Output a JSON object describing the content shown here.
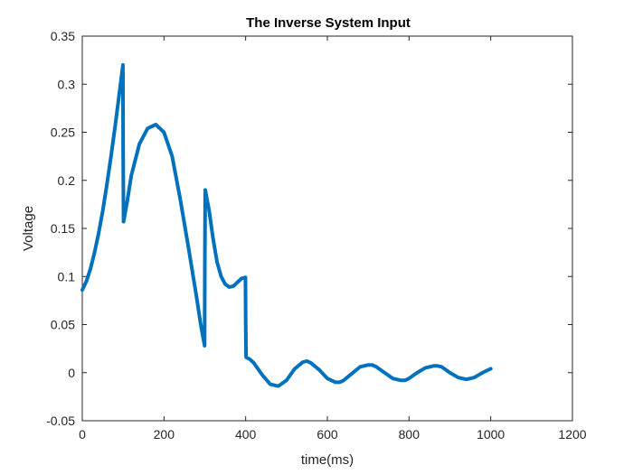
{
  "chart_data": {
    "type": "line",
    "title": "The Inverse System Input",
    "xlabel": "time(ms)",
    "ylabel": "Voltage",
    "xlim": [
      0,
      1200
    ],
    "ylim": [
      -0.05,
      0.35
    ],
    "xticks": [
      0,
      200,
      400,
      600,
      800,
      1000,
      1200
    ],
    "yticks": [
      -0.05,
      0,
      0.05,
      0.1,
      0.15,
      0.2,
      0.25,
      0.3,
      0.35
    ],
    "xtick_labels": [
      "0",
      "200",
      "400",
      "600",
      "800",
      "1000",
      "1200"
    ],
    "ytick_labels": [
      "-0.05",
      "0",
      "0.05",
      "0.1",
      "0.15",
      "0.2",
      "0.25",
      "0.3",
      "0.35"
    ],
    "grid": false,
    "box": true,
    "line_color": "#0072BD",
    "series": [
      {
        "x": [
          0,
          10,
          20,
          30,
          40,
          50,
          60,
          70,
          80,
          90,
          99.5,
          100,
          101,
          110,
          120,
          140,
          160,
          180,
          200,
          220,
          240,
          260,
          280,
          290,
          299.5,
          300,
          301,
          310,
          320,
          330,
          340,
          350,
          360,
          370,
          380,
          390,
          399.5,
          400,
          401,
          410,
          420,
          440,
          460,
          480,
          500,
          520,
          540,
          550,
          560,
          580,
          600,
          620,
          630,
          640,
          660,
          680,
          700,
          710,
          720,
          740,
          760,
          780,
          790,
          800,
          820,
          840,
          860,
          870,
          880,
          900,
          920,
          940,
          950,
          960,
          980,
          1000
        ],
        "y": [
          0.086,
          0.095,
          0.108,
          0.125,
          0.145,
          0.168,
          0.195,
          0.224,
          0.255,
          0.288,
          0.32,
          0.232,
          0.157,
          0.178,
          0.205,
          0.238,
          0.254,
          0.258,
          0.25,
          0.225,
          0.18,
          0.13,
          0.078,
          0.05,
          0.028,
          0.11,
          0.19,
          0.17,
          0.14,
          0.115,
          0.1,
          0.092,
          0.089,
          0.09,
          0.094,
          0.098,
          0.099,
          0.055,
          0.016,
          0.014,
          0.01,
          -0.002,
          -0.012,
          -0.014,
          -0.008,
          0.004,
          0.011,
          0.012,
          0.01,
          0.003,
          -0.006,
          -0.01,
          -0.01,
          -0.008,
          -0.001,
          0.006,
          0.008,
          0.008,
          0.006,
          0.0,
          -0.006,
          -0.008,
          -0.008,
          -0.006,
          0.0,
          0.005,
          0.007,
          0.007,
          0.006,
          0.0,
          -0.005,
          -0.007,
          -0.006,
          -0.005,
          0.0,
          0.004
        ]
      }
    ]
  }
}
